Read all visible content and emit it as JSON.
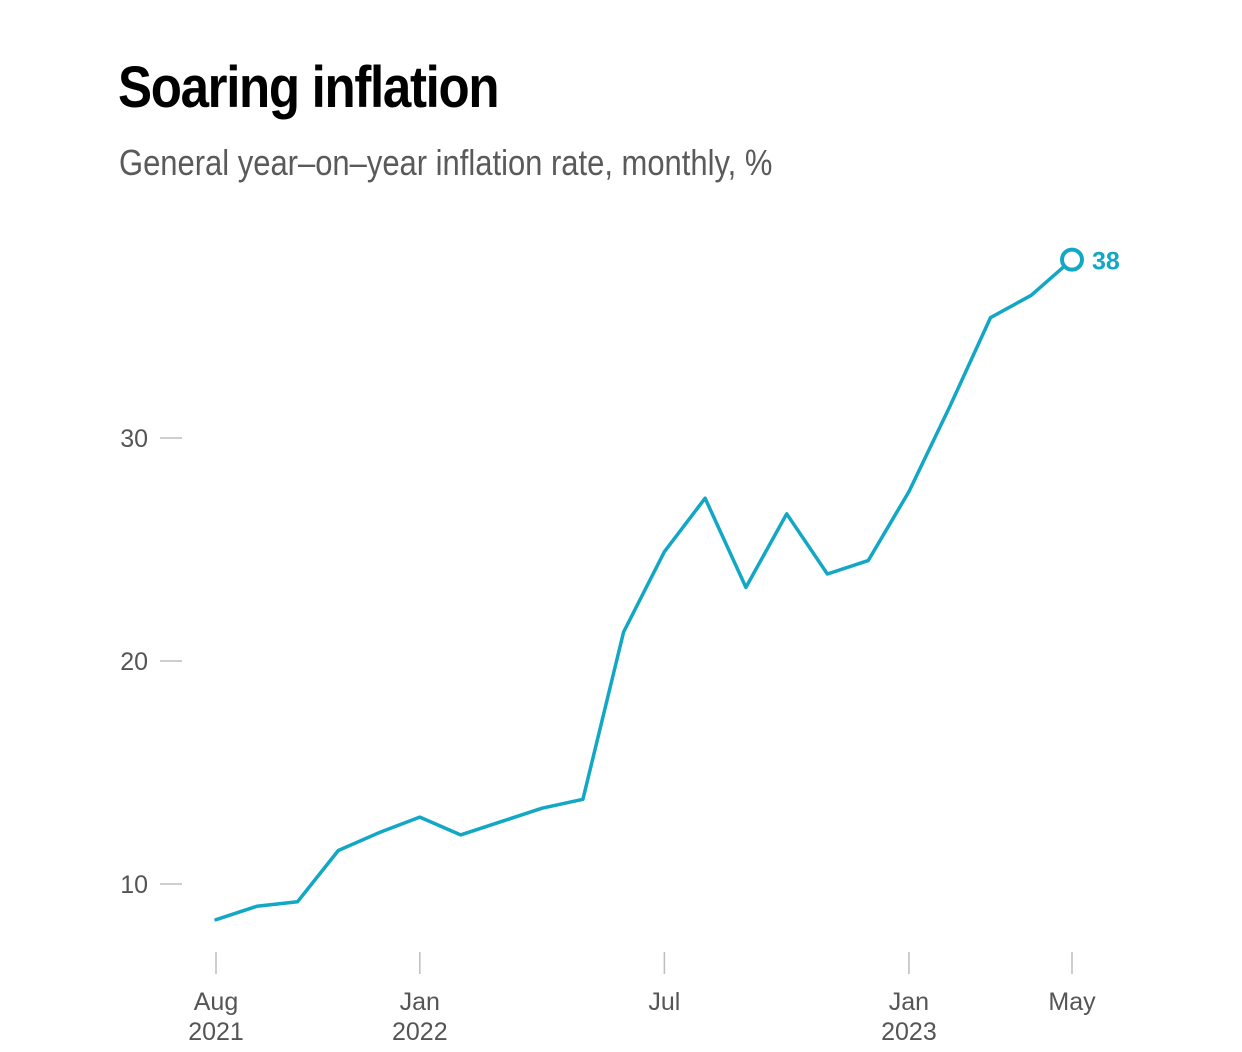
{
  "title": "Soaring inflation",
  "subtitle": "General year–on–year inflation rate, monthly, %",
  "colors": {
    "line": "#12a7c4",
    "text": "#000000",
    "subtext": "#5a5a5a",
    "axis": "#555555",
    "tick": "#bdbdbd"
  },
  "chart_data": {
    "type": "line",
    "title": "Soaring inflation",
    "subtitle": "General year–on–year inflation rate, monthly, %",
    "x": [
      "2021-08",
      "2021-09",
      "2021-10",
      "2021-11",
      "2021-12",
      "2022-01",
      "2022-02",
      "2022-03",
      "2022-04",
      "2022-05",
      "2022-06",
      "2022-07",
      "2022-08",
      "2022-09",
      "2022-10",
      "2022-11",
      "2022-12",
      "2023-01",
      "2023-02",
      "2023-03",
      "2023-04",
      "2023-05"
    ],
    "series": [
      {
        "values": [
          8.4,
          9.0,
          9.2,
          11.5,
          12.3,
          13.0,
          12.2,
          12.8,
          13.4,
          13.8,
          21.3,
          24.9,
          27.3,
          23.3,
          26.6,
          23.9,
          24.5,
          27.6,
          31.4,
          35.4,
          36.4,
          38.0
        ]
      }
    ],
    "ylim": [
      6.5,
      39.5
    ],
    "yticks": [
      {
        "value": 10,
        "label": "10"
      },
      {
        "value": 20,
        "label": "20"
      },
      {
        "value": 30,
        "label": "30"
      }
    ],
    "xticks": [
      {
        "x": "2021-08",
        "label": [
          "Aug",
          "2021"
        ]
      },
      {
        "x": "2022-01",
        "label": [
          "Jan",
          "2022"
        ]
      },
      {
        "x": "2022-07",
        "label": [
          "Jul"
        ]
      },
      {
        "x": "2023-01",
        "label": [
          "Jan",
          "2023"
        ]
      },
      {
        "x": "2023-05",
        "label": [
          "May"
        ]
      }
    ],
    "end_label": "38",
    "grid": false,
    "legend": "none"
  }
}
